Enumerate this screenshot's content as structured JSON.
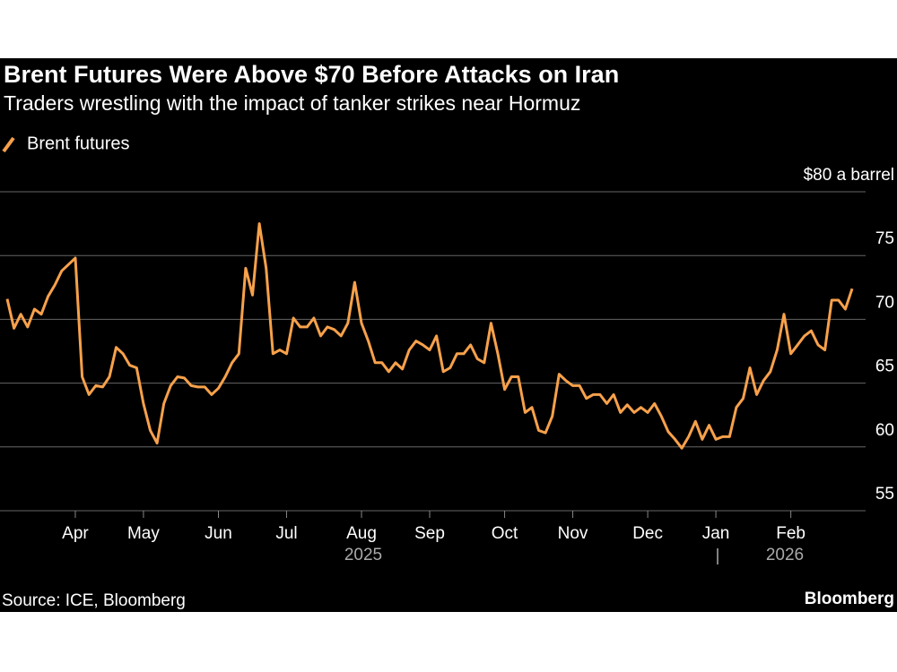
{
  "chart_data": {
    "type": "line",
    "title": "Brent Futures Were Above $70 Before Attacks on Iran",
    "subtitle": "Traders wrestling with the impact of tanker strikes near Hormuz",
    "source": "Source: ICE, Bloomberg",
    "brand": "Bloomberg",
    "year_labels": [
      "2025",
      "2026"
    ],
    "categories": [
      null,
      null,
      null,
      null,
      null,
      null,
      null,
      null,
      null,
      null,
      "Apr",
      null,
      null,
      null,
      null,
      null,
      null,
      null,
      null,
      null,
      "May",
      null,
      null,
      null,
      null,
      null,
      null,
      null,
      null,
      null,
      null,
      "Jun",
      null,
      null,
      null,
      null,
      null,
      null,
      null,
      null,
      null,
      "Jul",
      null,
      null,
      null,
      null,
      null,
      null,
      null,
      null,
      null,
      null,
      "Aug",
      null,
      null,
      null,
      null,
      null,
      null,
      null,
      null,
      null,
      "Sep",
      null,
      null,
      null,
      null,
      null,
      null,
      null,
      null,
      null,
      null,
      "Oct",
      null,
      null,
      null,
      null,
      null,
      null,
      null,
      null,
      null,
      "Nov",
      null,
      null,
      null,
      null,
      null,
      null,
      null,
      null,
      null,
      null,
      "Dec",
      null,
      null,
      null,
      null,
      null,
      null,
      null,
      null,
      null,
      "Jan",
      null,
      null,
      null,
      null,
      null,
      null,
      null,
      null,
      null,
      null,
      "Feb",
      null,
      null,
      null,
      null,
      null,
      null,
      null,
      null,
      null
    ],
    "series": [
      {
        "name": "Brent futures",
        "color": "#f7a14b",
        "values": [
          71.6,
          69.3,
          70.4,
          69.4,
          70.8,
          70.4,
          71.8,
          72.7,
          73.8,
          74.3,
          74.8,
          65.5,
          64.1,
          64.8,
          64.7,
          65.5,
          67.8,
          67.3,
          66.4,
          66.2,
          63.4,
          61.3,
          60.3,
          63.4,
          64.8,
          65.5,
          65.4,
          64.8,
          64.7,
          64.7,
          64.1,
          64.6,
          65.5,
          66.6,
          67.3,
          74.0,
          71.9,
          77.5,
          74.0,
          67.3,
          67.6,
          67.3,
          70.1,
          69.4,
          69.4,
          70.1,
          68.7,
          69.4,
          69.2,
          68.7,
          69.7,
          72.9,
          69.7,
          68.3,
          66.6,
          66.6,
          65.9,
          66.6,
          66.1,
          67.6,
          68.3,
          68.0,
          67.6,
          68.7,
          65.9,
          66.2,
          67.3,
          67.3,
          68.0,
          66.9,
          66.6,
          69.7,
          67.3,
          64.5,
          65.5,
          65.5,
          62.7,
          63.1,
          61.3,
          61.1,
          62.4,
          65.7,
          65.2,
          64.8,
          64.8,
          63.8,
          64.1,
          64.1,
          63.4,
          64.1,
          62.7,
          63.3,
          62.7,
          63.1,
          62.7,
          63.4,
          62.4,
          61.2,
          60.6,
          59.9,
          60.8,
          62.0,
          60.6,
          61.7,
          60.6,
          60.8,
          60.8,
          63.1,
          63.8,
          66.2,
          64.1,
          65.2,
          65.9,
          67.6,
          70.4,
          67.3,
          68.0,
          68.7,
          69.1,
          68.0,
          67.6,
          71.5,
          71.5,
          70.8,
          72.4
        ]
      }
    ],
    "ylim": [
      55,
      80
    ],
    "yticks": [
      55,
      60,
      65,
      70,
      75,
      {
        "value": 80,
        "label": "$80 a barrel"
      }
    ],
    "grid": true
  }
}
